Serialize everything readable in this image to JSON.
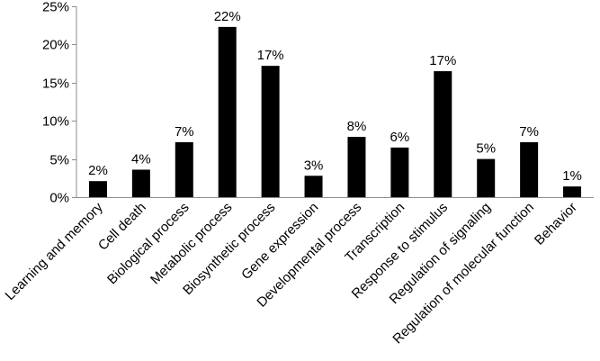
{
  "chart_data": {
    "type": "bar",
    "categories": [
      "Learning and memory",
      "Cell death",
      "Biological process",
      "Metabolic process",
      "Biosynthetic process",
      "Gene expression",
      "Developmental process",
      "Transcription",
      "Response to stimulus",
      "Regulation of signaling",
      "Regulation of molecular function",
      "Behavior"
    ],
    "values": [
      2.1,
      3.6,
      7.2,
      22.3,
      17.2,
      2.8,
      7.9,
      6.5,
      16.5,
      5.0,
      7.2,
      1.4
    ],
    "data_labels": [
      "2%",
      "4%",
      "7%",
      "22%",
      "17%",
      "3%",
      "8%",
      "6%",
      "17%",
      "5%",
      "7%",
      "1%"
    ],
    "y_ticks": [
      0,
      5,
      10,
      15,
      20,
      25
    ],
    "y_tick_labels": [
      "0%",
      "5%",
      "10%",
      "15%",
      "20%",
      "25%"
    ],
    "ylim": [
      0,
      25
    ],
    "grid": false,
    "bar_color": "#000000",
    "axis_color": "#8c8c8c"
  }
}
